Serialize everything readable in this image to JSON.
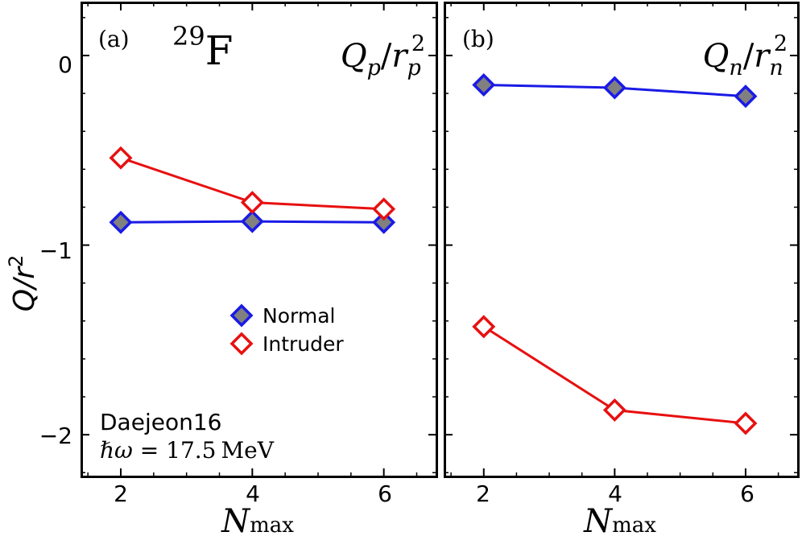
{
  "y_axis_label": {
    "main": "Q/r",
    "sup": "2"
  },
  "x_axis_label": {
    "main": "N",
    "sub": "max"
  },
  "legend": {
    "items": [
      {
        "label": "Normal",
        "marker": "filled-diamond",
        "edge": "#1a1ae6",
        "fill": "#808080"
      },
      {
        "label": "Intruder",
        "marker": "open-diamond",
        "edge": "#e81010",
        "fill": "#ffffff"
      }
    ]
  },
  "annotations": {
    "interaction": "Daejeon16",
    "hbar_omega": {
      "symbol": "ℏω",
      "eq": " = ",
      "value": "17.5",
      "unit": "MeV"
    }
  },
  "chart_data": [
    {
      "type": "line",
      "panel_label": "(a)",
      "nucleus": {
        "mass": "29",
        "symbol": "F"
      },
      "title": {
        "q": "Q",
        "q_sub": "p",
        "slash": "/",
        "r": "r",
        "r_sub": "p",
        "r_sup": "2"
      },
      "x": [
        2,
        4,
        6
      ],
      "xticks": [
        2,
        4,
        6
      ],
      "xlim": [
        1.4,
        6.8
      ],
      "ylim": [
        -2.22,
        0.28
      ],
      "yticks": [
        0,
        -1,
        -2
      ],
      "ytick_labels": [
        "0",
        "−1",
        "−2"
      ],
      "ylabel": "Q/r2",
      "xlabel": "Nmax",
      "series": [
        {
          "name": "Normal",
          "values": [
            -0.88,
            -0.875,
            -0.88
          ]
        },
        {
          "name": "Intruder",
          "values": [
            -0.54,
            -0.775,
            -0.81
          ]
        }
      ]
    },
    {
      "type": "line",
      "panel_label": "(b)",
      "title": {
        "q": "Q",
        "q_sub": "n",
        "slash": "/",
        "r": "r",
        "r_sub": "n",
        "r_sup": "2"
      },
      "x": [
        2,
        4,
        6
      ],
      "xticks": [
        2,
        4,
        6
      ],
      "xlim": [
        1.4,
        6.8
      ],
      "ylim": [
        -2.22,
        0.28
      ],
      "yticks": [
        0,
        -1,
        -2
      ],
      "xlabel": "Nmax",
      "series": [
        {
          "name": "Normal",
          "values": [
            -0.155,
            -0.17,
            -0.215
          ]
        },
        {
          "name": "Intruder",
          "values": [
            -1.43,
            -1.87,
            -1.94
          ]
        }
      ]
    }
  ]
}
